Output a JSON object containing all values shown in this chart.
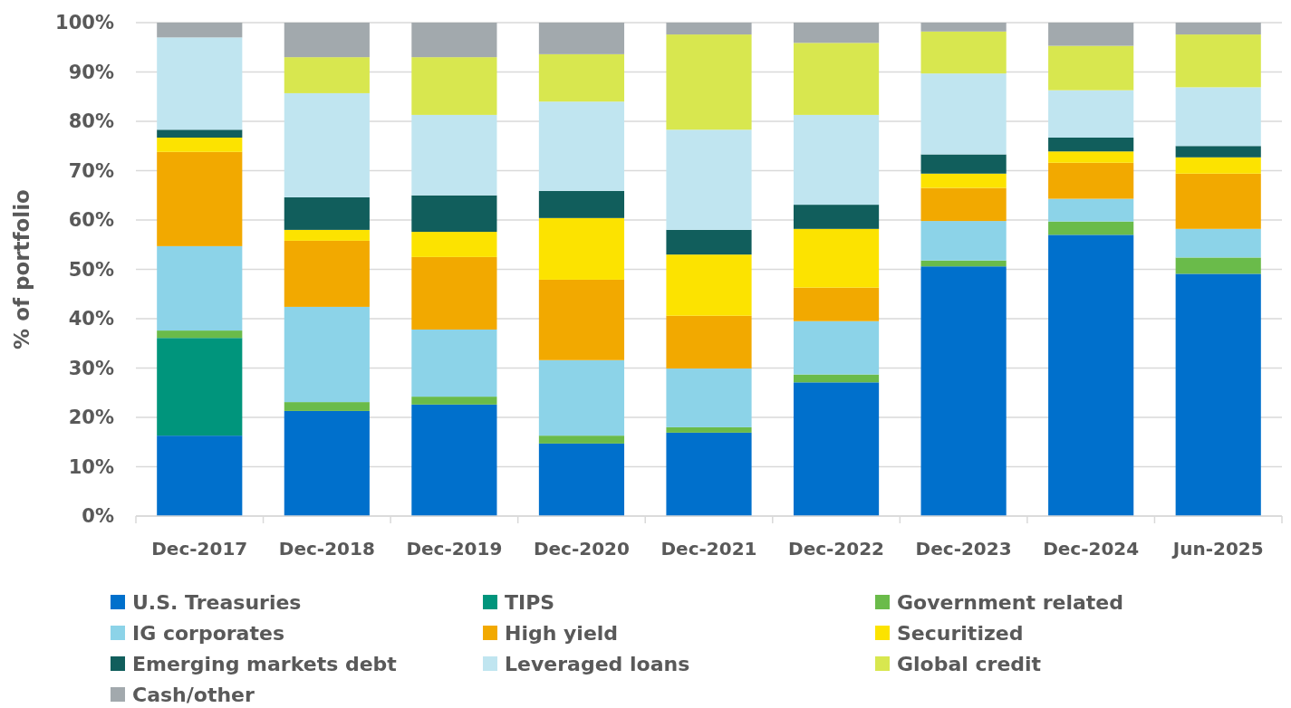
{
  "chart_data": {
    "type": "bar",
    "stacked": true,
    "ylabel": "% of portfolio",
    "categories": [
      "Dec-2017",
      "Dec-2018",
      "Dec-2019",
      "Dec-2020",
      "Dec-2021",
      "Dec-2022",
      "Dec-2023",
      "Dec-2024",
      "Jun-2025"
    ],
    "series": [
      {
        "name": "U.S. Treasuries",
        "color": "#0070cc",
        "values": [
          16.3,
          21.3,
          22.6,
          14.7,
          16.9,
          27.1,
          50.6,
          57.0,
          49.1
        ]
      },
      {
        "name": "TIPS",
        "color": "#00957c",
        "values": [
          19.8,
          0,
          0,
          0,
          0,
          0,
          0,
          0,
          0
        ]
      },
      {
        "name": "Government related",
        "color": "#6abb4a",
        "values": [
          1.5,
          1.8,
          1.6,
          1.6,
          1.1,
          1.6,
          1.2,
          2.7,
          3.3
        ]
      },
      {
        "name": "IG corporates",
        "color": "#8cd3e8",
        "values": [
          17.1,
          19.3,
          13.6,
          15.3,
          11.9,
          10.8,
          8.0,
          4.6,
          5.8
        ]
      },
      {
        "name": "High yield",
        "color": "#f2a900",
        "values": [
          19.1,
          13.4,
          14.7,
          16.3,
          10.7,
          6.8,
          6.7,
          7.3,
          11.2
        ]
      },
      {
        "name": "Securitized",
        "color": "#fce300",
        "values": [
          2.9,
          2.2,
          5.1,
          12.5,
          12.4,
          11.9,
          2.9,
          2.3,
          3.3
        ]
      },
      {
        "name": "Emerging markets debt",
        "color": "#115e5c",
        "values": [
          1.6,
          6.6,
          7.4,
          5.5,
          5.0,
          4.9,
          3.9,
          2.8,
          2.3
        ]
      },
      {
        "name": "Leveraged loans",
        "color": "#c0e5f0",
        "values": [
          18.7,
          21.1,
          16.3,
          18.1,
          20.3,
          18.2,
          16.4,
          9.6,
          11.9
        ]
      },
      {
        "name": "Global credit",
        "color": "#d8e74f",
        "values": [
          0,
          7.3,
          11.7,
          9.6,
          19.3,
          14.6,
          8.5,
          9.0,
          10.7
        ]
      },
      {
        "name": "Cash/other",
        "color": "#a2a9ad",
        "values": [
          3.0,
          7.0,
          7.0,
          6.4,
          2.4,
          4.1,
          1.8,
          4.7,
          2.4
        ]
      }
    ],
    "ylim": [
      0,
      100
    ],
    "yticks": [
      {
        "value": 0,
        "label": "0%"
      },
      {
        "value": 10,
        "label": "10%"
      },
      {
        "value": 20,
        "label": "20%"
      },
      {
        "value": 30,
        "label": "30%"
      },
      {
        "value": 40,
        "label": "40%"
      },
      {
        "value": 50,
        "label": "50%"
      },
      {
        "value": 60,
        "label": "60%"
      },
      {
        "value": 70,
        "label": "70%"
      },
      {
        "value": 80,
        "label": "80%"
      },
      {
        "value": 90,
        "label": "90%"
      },
      {
        "value": 100,
        "label": "100%"
      }
    ],
    "grid": "y",
    "legend": "bottom"
  }
}
